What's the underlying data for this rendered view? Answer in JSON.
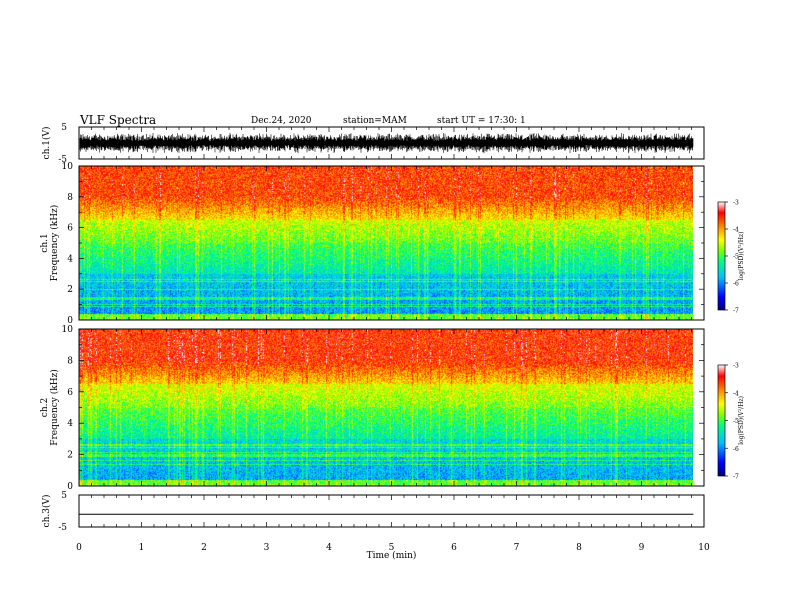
{
  "header": {
    "title": "VLF Spectra",
    "date": "Dec.24, 2020",
    "station": "station=MAM",
    "start_ut": "start  UT =   17:30: 1"
  },
  "chart_data": {
    "type": "heatmap",
    "x_axis": {
      "label": "Time  (min)",
      "range": [
        0,
        10
      ],
      "ticks": [
        "0",
        "1",
        "2",
        "3",
        "4",
        "5",
        "6",
        "7",
        "8",
        "9",
        "10"
      ],
      "data_end": 9.83
    },
    "panels": [
      {
        "id": "ch1-waveform",
        "type": "line",
        "ylabel": "ch.1(V)",
        "ylim": [
          -5,
          5
        ],
        "yticks": [
          "5",
          "-5"
        ],
        "description_fill": "dense noisy waveform spanning roughly -3 to +3 V"
      },
      {
        "id": "ch1-spectrogram",
        "type": "heatmap",
        "ylabel_channel": "ch.1",
        "ylabel": "Frequency  (kHz)",
        "ylim": [
          0,
          10
        ],
        "yticks": [
          "0",
          "2",
          "4",
          "6",
          "8",
          "10"
        ],
        "colorbar": {
          "label": "log(PSD)(V²/Hz)",
          "range": [
            -7,
            -3
          ],
          "ticks": [
            "-3",
            "-4",
            "-5",
            "-6",
            "-7"
          ],
          "colormap": [
            "#000080",
            "#0000ff",
            "#00c0ff",
            "#00ff80",
            "#80ff00",
            "#ffff00",
            "#ff8000",
            "#ff0000",
            "#ffffff"
          ]
        }
      },
      {
        "id": "ch2-spectrogram",
        "type": "heatmap",
        "ylabel_channel": "ch.2",
        "ylabel": "Frequency  (kHz)",
        "ylim": [
          0,
          10
        ],
        "yticks": [
          "0",
          "2",
          "4",
          "6",
          "8",
          "10"
        ],
        "colorbar": {
          "label": "log(PSD)(V²/Hz)",
          "range": [
            -7,
            -3
          ],
          "ticks": [
            "-3",
            "-4",
            "-5",
            "-6",
            "-7"
          ],
          "colormap": [
            "#000080",
            "#0000ff",
            "#00c0ff",
            "#00ff80",
            "#80ff00",
            "#ffff00",
            "#ff8000",
            "#ff0000",
            "#ffffff"
          ]
        }
      },
      {
        "id": "ch3-waveform",
        "type": "line",
        "ylabel": "ch.3(V)",
        "ylim": [
          -5,
          5
        ],
        "yticks": [
          "5",
          "-5"
        ],
        "values": [
          -1,
          -1
        ]
      }
    ]
  }
}
